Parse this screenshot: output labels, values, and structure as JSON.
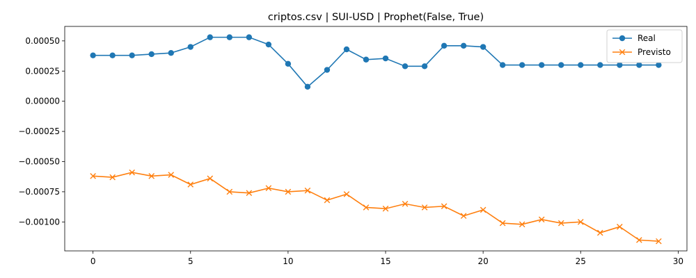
{
  "chart_data": {
    "type": "line",
    "title": "criptos.csv | SUI-USD | Prophet(False, True)",
    "xlabel": "",
    "ylabel": "",
    "xlim": [
      -1.45,
      30.45
    ],
    "ylim": [
      -0.00124,
      0.00062
    ],
    "x_ticks": [
      0,
      5,
      10,
      15,
      20,
      25,
      30
    ],
    "x_tick_labels": [
      "0",
      "5",
      "10",
      "15",
      "20",
      "25",
      "30"
    ],
    "y_ticks": [
      0.0005,
      0.00025,
      0.0,
      -0.00025,
      -0.0005,
      -0.00075,
      -0.001
    ],
    "y_tick_labels": [
      "0.00050",
      "0.00025",
      "0.00000",
      "−0.00025",
      "−0.00050",
      "−0.00075",
      "−0.00100"
    ],
    "grid": false,
    "legend": "top-right",
    "x": [
      0,
      1,
      2,
      3,
      4,
      5,
      6,
      7,
      8,
      9,
      10,
      11,
      12,
      13,
      14,
      15,
      16,
      17,
      18,
      19,
      20,
      21,
      22,
      23,
      24,
      25,
      26,
      27,
      28,
      29
    ],
    "series": [
      {
        "name": "Real",
        "color": "#1f77b4",
        "marker": "circle",
        "values": [
          0.00038,
          0.00038,
          0.00038,
          0.00039,
          0.0004,
          0.00045,
          0.00053,
          0.00053,
          0.00053,
          0.00047,
          0.00031,
          0.00012,
          0.00026,
          0.00043,
          0.000345,
          0.000355,
          0.00029,
          0.00029,
          0.00046,
          0.00046,
          0.00045,
          0.0003,
          0.0003,
          0.0003,
          0.0003,
          0.0003,
          0.0003,
          0.0003,
          0.0003,
          0.0003
        ]
      },
      {
        "name": "Previsto",
        "color": "#ff7f0e",
        "marker": "x",
        "values": [
          -0.00062,
          -0.00063,
          -0.00059,
          -0.00062,
          -0.00061,
          -0.00069,
          -0.00064,
          -0.00075,
          -0.00076,
          -0.00072,
          -0.00075,
          -0.00074,
          -0.00082,
          -0.00077,
          -0.00088,
          -0.00089,
          -0.00085,
          -0.00088,
          -0.00087,
          -0.00095,
          -0.0009,
          -0.00101,
          -0.00102,
          -0.00098,
          -0.00101,
          -0.001,
          -0.00109,
          -0.00104,
          -0.00115,
          -0.00116
        ]
      }
    ]
  }
}
